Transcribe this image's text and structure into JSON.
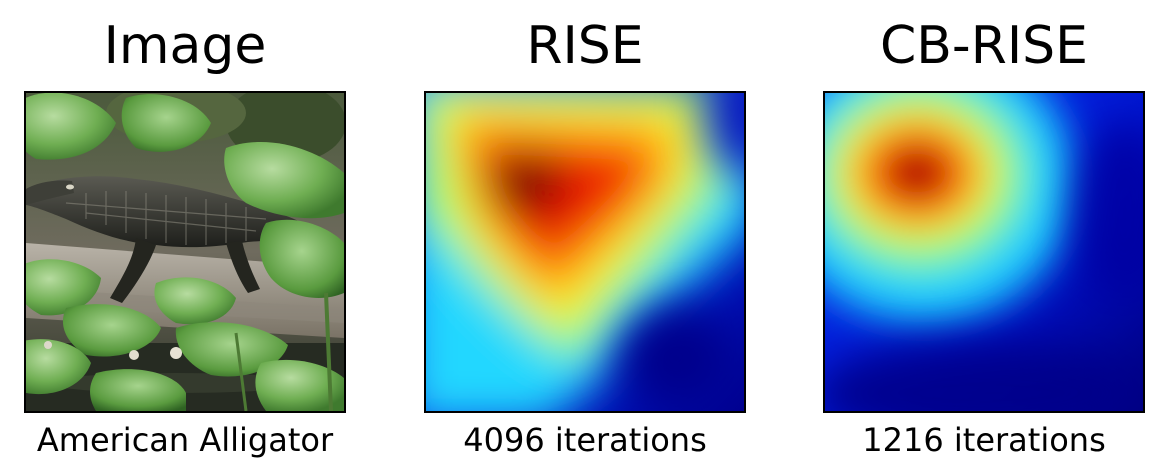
{
  "panels": [
    {
      "title": "Image",
      "caption": "American Alligator",
      "kind": "photo"
    },
    {
      "title": "RISE",
      "caption": "4096 iterations",
      "kind": "heatmap",
      "colormap": "jet"
    },
    {
      "title": "CB-RISE",
      "caption": "1216 iterations",
      "kind": "heatmap",
      "colormap": "jet"
    }
  ],
  "colors": {
    "jet_low": "#00008f",
    "jet_high": "#800000"
  }
}
